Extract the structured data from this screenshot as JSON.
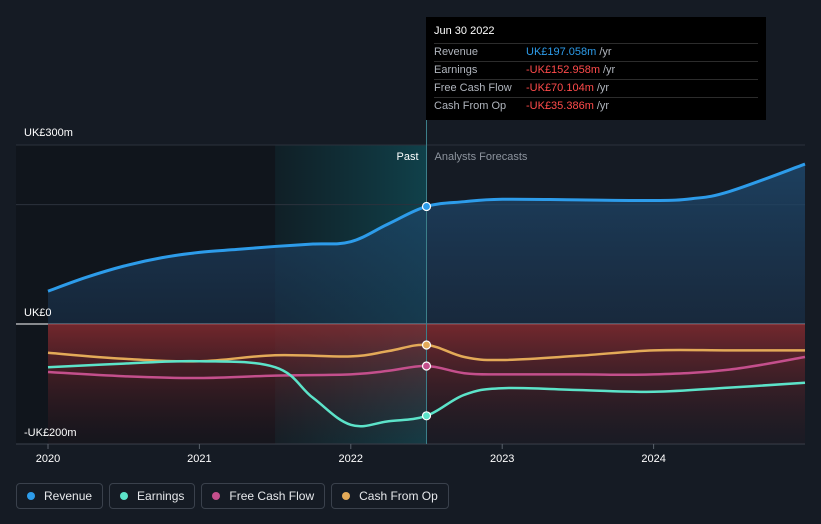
{
  "chart_data": {
    "type": "line",
    "title": "",
    "x_ticks": [
      2020,
      2021,
      2022,
      2023,
      2024
    ],
    "y_labels": {
      "top": "UK£300m",
      "zero": "UK£0",
      "bottom": "-UK£200m"
    },
    "ylim": [
      -200,
      300
    ],
    "xlim": [
      2020.0,
      2025.0
    ],
    "past_label": "Past",
    "forecast_label": "Analysts Forecasts",
    "divider_x": 2022.5,
    "past_shade_start": 2021.5,
    "series": [
      {
        "name": "Revenue",
        "color": "#2d9cea",
        "x": [
          2020.0,
          2020.25,
          2020.5,
          2020.75,
          2021.0,
          2021.25,
          2021.5,
          2021.75,
          2022.0,
          2022.25,
          2022.5,
          2022.75,
          2023.0,
          2023.5,
          2024.0,
          2024.25,
          2024.5,
          2025.0
        ],
        "y": [
          55,
          78,
          97,
          111,
          120,
          125,
          130,
          134,
          138,
          168,
          197,
          205,
          209,
          208,
          207,
          210,
          222,
          268
        ]
      },
      {
        "name": "Earnings",
        "color": "#5ce3c9",
        "x": [
          2020.0,
          2020.5,
          2021.0,
          2021.5,
          2021.75,
          2022.0,
          2022.25,
          2022.5,
          2022.75,
          2023.0,
          2023.5,
          2024.0,
          2024.5,
          2025.0
        ],
        "y": [
          -72,
          -66,
          -62,
          -72,
          -123,
          -168,
          -162,
          -153,
          -118,
          -107,
          -110,
          -113,
          -106,
          -98
        ]
      },
      {
        "name": "Free Cash Flow",
        "color": "#c44f8c",
        "x": [
          2020.0,
          2020.5,
          2021.0,
          2021.5,
          2022.0,
          2022.25,
          2022.5,
          2022.75,
          2023.0,
          2023.5,
          2024.0,
          2024.5,
          2025.0
        ],
        "y": [
          -80,
          -87,
          -90,
          -86,
          -84,
          -78,
          -70,
          -82,
          -84,
          -84,
          -84,
          -76,
          -55
        ]
      },
      {
        "name": "Cash From Op",
        "color": "#e3aa58",
        "x": [
          2020.0,
          2020.5,
          2021.0,
          2021.5,
          2022.0,
          2022.25,
          2022.5,
          2022.75,
          2023.0,
          2023.5,
          2024.0,
          2024.5,
          2025.0
        ],
        "y": [
          -48,
          -58,
          -62,
          -52,
          -54,
          -45,
          -35,
          -55,
          -60,
          -53,
          -44,
          -44,
          -44
        ]
      }
    ]
  },
  "tooltip": {
    "date": "Jun 30 2022",
    "rows": [
      {
        "label": "Revenue",
        "value": "UK£197.058m",
        "unit": "/yr",
        "color": "#2d9cea"
      },
      {
        "label": "Earnings",
        "value": "-UK£152.958m",
        "unit": "/yr",
        "color": "#ff4b4b"
      },
      {
        "label": "Free Cash Flow",
        "value": "-UK£70.104m",
        "unit": "/yr",
        "color": "#ff4b4b"
      },
      {
        "label": "Cash From Op",
        "value": "-UK£35.386m",
        "unit": "/yr",
        "color": "#ff4b4b"
      }
    ]
  },
  "legend": [
    {
      "label": "Revenue",
      "color": "#2d9cea"
    },
    {
      "label": "Earnings",
      "color": "#5ce3c9"
    },
    {
      "label": "Free Cash Flow",
      "color": "#c44f8c"
    },
    {
      "label": "Cash From Op",
      "color": "#e3aa58"
    }
  ]
}
